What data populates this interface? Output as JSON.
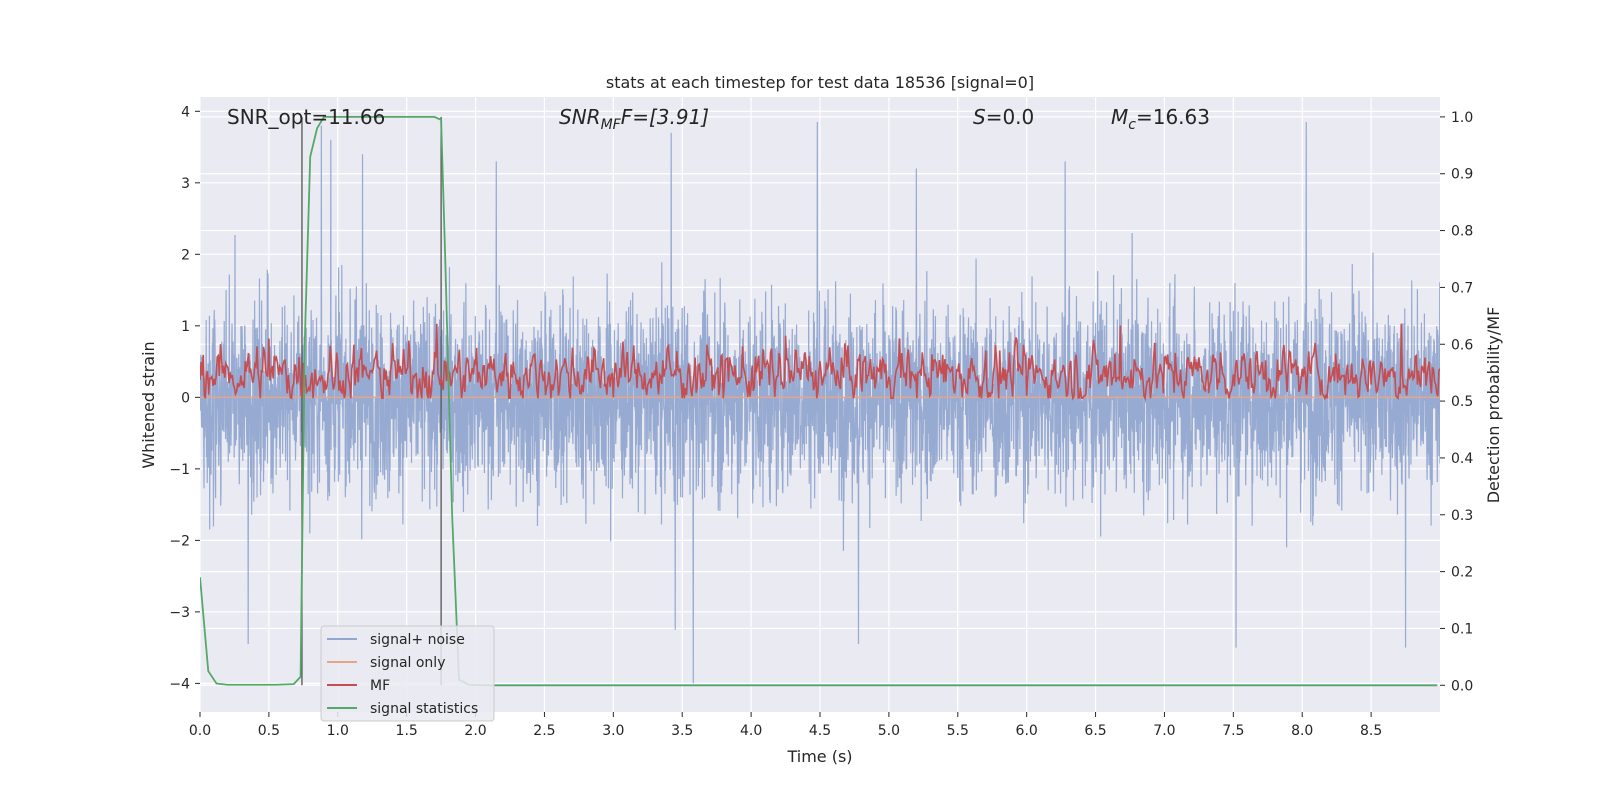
{
  "chart_data": {
    "type": "line",
    "title": "stats at each timestep for test data 18536 [signal=0]",
    "xlabel": "Time (s)",
    "ylabel": "Whitened strain",
    "y2label": "Detection probability/MF",
    "xlim": [
      0.0,
      9.0
    ],
    "ylim": [
      -4.4,
      4.2
    ],
    "y2lim": [
      -0.047,
      1.035
    ],
    "x_ticks": [
      0.0,
      0.5,
      1.0,
      1.5,
      2.0,
      2.5,
      3.0,
      3.5,
      4.0,
      4.5,
      5.0,
      5.5,
      6.0,
      6.5,
      7.0,
      7.5,
      8.0,
      8.5
    ],
    "x_tick_labels": [
      "0.0",
      "0.5",
      "1.0",
      "1.5",
      "2.0",
      "2.5",
      "3.0",
      "3.5",
      "4.0",
      "4.5",
      "5.0",
      "5.5",
      "6.0",
      "6.5",
      "7.0",
      "7.5",
      "8.0",
      "8.5"
    ],
    "y_ticks": [
      -4,
      -3,
      -2,
      -1,
      0,
      1,
      2,
      3,
      4
    ],
    "y_tick_labels": [
      "−4",
      "−3",
      "−2",
      "−1",
      "0",
      "1",
      "2",
      "3",
      "4"
    ],
    "y2_ticks": [
      0.0,
      0.1,
      0.2,
      0.3,
      0.4,
      0.5,
      0.6,
      0.7,
      0.8,
      0.9,
      1.0
    ],
    "y2_tick_labels": [
      "0.0",
      "0.1",
      "0.2",
      "0.3",
      "0.4",
      "0.5",
      "0.6",
      "0.7",
      "0.8",
      "0.9",
      "1.0"
    ],
    "grid": true,
    "legend_position": "bottom-left",
    "annotations": {
      "snr_opt": "SNR_opt=11.66",
      "snr_mf_main": "SNR",
      "snr_mf_sub": "MF",
      "snr_mf_value": "F=[3.91]",
      "s_main": "S",
      "s_value": "=0.0",
      "mc_main": "M",
      "mc_sub": "c",
      "mc_value": "=16.63"
    },
    "vertical_markers": [
      0.74,
      1.75
    ],
    "series": [
      {
        "name": "signal+ noise",
        "axis": "left",
        "color": "#92a6cf",
        "kind": "noise",
        "sample_rate": 512,
        "x_range": [
          0.0,
          9.0
        ],
        "envelope": 1.8,
        "peaks": [
          {
            "x": 0.88,
            "y": 3.8
          },
          {
            "x": 0.95,
            "y": 3.6
          },
          {
            "x": 3.42,
            "y": 3.7
          },
          {
            "x": 4.48,
            "y": 3.85
          },
          {
            "x": 8.03,
            "y": 3.85
          },
          {
            "x": 6.28,
            "y": 3.3
          },
          {
            "x": 3.58,
            "y": -4.0
          },
          {
            "x": 0.35,
            "y": -3.45
          },
          {
            "x": 3.45,
            "y": -3.25
          },
          {
            "x": 4.78,
            "y": -3.45
          },
          {
            "x": 8.75,
            "y": -3.5
          },
          {
            "x": 7.52,
            "y": -3.5
          },
          {
            "x": 1.18,
            "y": 3.4
          },
          {
            "x": 2.15,
            "y": 3.3
          },
          {
            "x": 5.2,
            "y": 3.2
          }
        ]
      },
      {
        "name": "signal only",
        "axis": "left",
        "color": "#e8a488",
        "kind": "flat",
        "x": [
          0.0,
          9.0
        ],
        "y": [
          0.0,
          0.0
        ]
      },
      {
        "name": "MF",
        "axis": "right",
        "color": "#c44e52",
        "kind": "mf",
        "sample_rate": 128,
        "x_range": [
          0.0,
          9.0
        ],
        "mean": 0.548,
        "spread": 0.03,
        "peaks": [
          {
            "x": 1.72,
            "y": 0.636
          },
          {
            "x": 6.68,
            "y": 0.633
          },
          {
            "x": 8.72,
            "y": 0.636
          },
          {
            "x": 0.5,
            "y": 0.61
          },
          {
            "x": 4.25,
            "y": 0.615
          },
          {
            "x": 5.08,
            "y": 0.61
          }
        ]
      },
      {
        "name": "signal statistics",
        "axis": "right",
        "color": "#55a868",
        "kind": "line",
        "x": [
          0.0,
          0.06,
          0.12,
          0.2,
          0.35,
          0.55,
          0.68,
          0.73,
          0.76,
          0.8,
          0.85,
          0.9,
          1.0,
          1.2,
          1.5,
          1.7,
          1.75,
          1.78,
          1.83,
          1.88,
          1.95,
          2.1,
          3.0,
          4.0,
          5.0,
          6.0,
          7.0,
          8.0,
          8.98
        ],
        "y": [
          0.19,
          0.025,
          0.003,
          0.001,
          0.001,
          0.001,
          0.002,
          0.015,
          0.6,
          0.93,
          0.98,
          1.0,
          1.0,
          1.0,
          1.0,
          1.0,
          0.995,
          0.75,
          0.3,
          0.01,
          0.001,
          0.0,
          0.0,
          0.0,
          0.0,
          0.0,
          0.0,
          0.0,
          0.0
        ]
      }
    ]
  }
}
